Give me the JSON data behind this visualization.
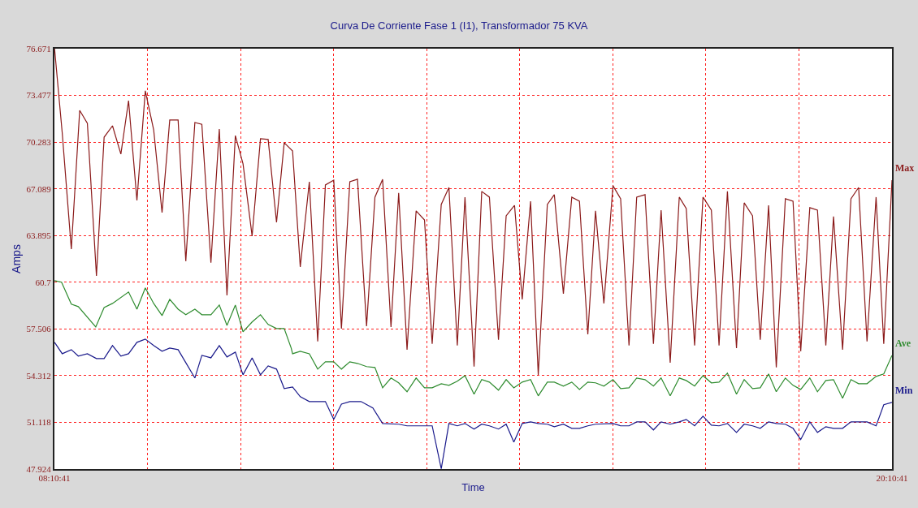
{
  "chart_data": {
    "type": "line",
    "title": "Curva De Corriente Fase 1 (I1), Transformador 75 KVA",
    "xlabel": "Time",
    "ylabel": "Amps",
    "xlim": [
      8.178,
      20.178
    ],
    "ylim": [
      47.924,
      76.671
    ],
    "xticks": [
      {
        "value": 8.178,
        "label": "08:10:41"
      },
      {
        "value": 9.511,
        "label": null
      },
      {
        "value": 10.844,
        "label": null
      },
      {
        "value": 12.178,
        "label": null
      },
      {
        "value": 13.511,
        "label": null
      },
      {
        "value": 14.844,
        "label": null
      },
      {
        "value": 16.178,
        "label": null
      },
      {
        "value": 17.511,
        "label": null
      },
      {
        "value": 18.844,
        "label": null
      },
      {
        "value": 20.178,
        "label": "20:10:41"
      }
    ],
    "yticks": [
      47.924,
      51.118,
      54.312,
      57.506,
      60.7,
      63.895,
      67.089,
      70.283,
      73.477,
      76.671
    ],
    "grid": true,
    "legend": false,
    "marker": "none",
    "line_style": "solid",
    "series": [
      {
        "name": "Max",
        "color": "#8b1a1a",
        "x": [
          8.18,
          8.29,
          8.42,
          8.54,
          8.65,
          8.78,
          8.89,
          9.01,
          9.13,
          9.24,
          9.36,
          9.48,
          9.6,
          9.72,
          9.83,
          9.95,
          10.06,
          10.19,
          10.29,
          10.42,
          10.54,
          10.65,
          10.77,
          10.88,
          11.01,
          11.13,
          11.24,
          11.36,
          11.47,
          11.59,
          11.7,
          11.83,
          11.95,
          12.06,
          12.18,
          12.29,
          12.41,
          12.52,
          12.65,
          12.77,
          12.88,
          13.0,
          13.11,
          13.23,
          13.36,
          13.48,
          13.59,
          13.72,
          13.83,
          13.95,
          14.06,
          14.19,
          14.3,
          14.41,
          14.54,
          14.65,
          14.77,
          14.88,
          15.0,
          15.11,
          15.24,
          15.34,
          15.47,
          15.59,
          15.7,
          15.82,
          15.93,
          16.05,
          16.18,
          16.29,
          16.41,
          16.52,
          16.64,
          16.76,
          16.87,
          17.0,
          17.13,
          17.23,
          17.35,
          17.47,
          17.59,
          17.7,
          17.82,
          17.95,
          18.06,
          18.18,
          18.29,
          18.41,
          18.52,
          18.65,
          18.76,
          18.87,
          19.0,
          19.11,
          19.23,
          19.34,
          19.47,
          19.59,
          19.7,
          19.82,
          19.95,
          20.06,
          20.178
        ],
        "values": [
          76.67,
          70.9,
          62.96,
          72.45,
          71.57,
          61.14,
          70.62,
          71.4,
          69.46,
          73.12,
          66.3,
          73.79,
          71.12,
          65.46,
          71.79,
          71.79,
          62.14,
          71.62,
          71.5,
          62.03,
          71.18,
          59.8,
          70.73,
          68.8,
          63.86,
          70.51,
          70.46,
          64.8,
          70.24,
          69.68,
          61.75,
          67.57,
          56.65,
          67.35,
          67.68,
          57.53,
          67.57,
          67.74,
          57.7,
          66.52,
          67.74,
          57.64,
          66.8,
          56.09,
          65.58,
          64.96,
          56.48,
          66.02,
          67.18,
          56.37,
          66.52,
          54.93,
          66.91,
          66.52,
          56.76,
          65.24,
          65.96,
          59.53,
          66.24,
          54.37,
          66.02,
          66.69,
          59.92,
          66.52,
          66.24,
          57.14,
          65.58,
          59.25,
          67.3,
          66.41,
          56.37,
          66.52,
          66.69,
          56.48,
          65.63,
          55.2,
          66.52,
          65.74,
          56.37,
          66.52,
          65.63,
          56.37,
          66.91,
          56.2,
          66.13,
          65.24,
          56.76,
          65.96,
          54.87,
          66.41,
          66.24,
          55.98,
          65.8,
          65.63,
          56.37,
          65.19,
          56.09,
          66.41,
          67.18,
          56.65,
          66.52,
          56.48,
          67.68
        ]
      },
      {
        "name": "Ave",
        "color": "#2e8b2e",
        "x": [
          8.18,
          8.28,
          8.42,
          8.52,
          8.77,
          8.89,
          9.01,
          9.24,
          9.36,
          9.48,
          9.6,
          9.72,
          9.83,
          9.95,
          10.06,
          10.19,
          10.29,
          10.42,
          10.54,
          10.65,
          10.77,
          10.88,
          11.01,
          11.13,
          11.24,
          11.36,
          11.47,
          11.57,
          11.59,
          11.7,
          11.83,
          11.95,
          12.06,
          12.18,
          12.29,
          12.41,
          12.52,
          12.65,
          12.77,
          12.88,
          13.0,
          13.11,
          13.23,
          13.36,
          13.48,
          13.59,
          13.72,
          13.83,
          13.95,
          14.06,
          14.19,
          14.3,
          14.41,
          14.54,
          14.65,
          14.76,
          14.88,
          15.0,
          15.11,
          15.24,
          15.34,
          15.47,
          15.59,
          15.7,
          15.82,
          15.93,
          16.05,
          16.18,
          16.29,
          16.41,
          16.52,
          16.64,
          16.76,
          16.87,
          17.0,
          17.13,
          17.23,
          17.35,
          17.47,
          17.59,
          17.7,
          17.82,
          17.95,
          18.06,
          18.18,
          18.29,
          18.41,
          18.52,
          18.65,
          18.76,
          18.87,
          19.0,
          19.11,
          19.23,
          19.34,
          19.47,
          19.59,
          19.7,
          19.82,
          19.95,
          20.06,
          20.178
        ],
        "values": [
          60.81,
          60.7,
          59.2,
          59.03,
          57.64,
          58.97,
          59.25,
          60.03,
          58.86,
          60.31,
          59.25,
          58.42,
          59.53,
          58.86,
          58.48,
          58.86,
          58.48,
          58.48,
          59.14,
          57.75,
          59.14,
          57.31,
          57.98,
          58.48,
          57.81,
          57.53,
          57.53,
          56.2,
          55.81,
          55.98,
          55.81,
          54.76,
          55.26,
          55.26,
          54.76,
          55.26,
          55.15,
          54.93,
          54.87,
          53.48,
          54.15,
          53.82,
          53.21,
          54.15,
          53.48,
          53.48,
          53.76,
          53.65,
          53.93,
          54.31,
          53.04,
          54.04,
          53.87,
          53.32,
          54.04,
          53.48,
          53.87,
          54.04,
          52.93,
          53.87,
          53.87,
          53.6,
          53.87,
          53.37,
          53.87,
          53.82,
          53.6,
          54.04,
          53.43,
          53.48,
          54.15,
          54.04,
          53.6,
          54.15,
          52.93,
          54.15,
          53.98,
          53.6,
          54.31,
          53.82,
          53.87,
          54.48,
          53.04,
          54.04,
          53.43,
          53.48,
          54.43,
          53.21,
          54.15,
          53.65,
          53.37,
          54.15,
          53.21,
          53.98,
          54.04,
          52.76,
          54.04,
          53.76,
          53.76,
          54.26,
          54.43,
          55.7
        ]
      },
      {
        "name": "Min",
        "color": "#1a1a8b",
        "x": [
          8.18,
          8.29,
          8.42,
          8.52,
          8.65,
          8.78,
          8.89,
          9.01,
          9.13,
          9.24,
          9.36,
          9.48,
          9.6,
          9.72,
          9.83,
          9.95,
          10.06,
          10.19,
          10.29,
          10.42,
          10.54,
          10.65,
          10.77,
          10.88,
          11.01,
          11.13,
          11.24,
          11.36,
          11.47,
          11.59,
          11.7,
          11.83,
          12.06,
          12.18,
          12.29,
          12.41,
          12.57,
          12.74,
          12.88,
          13.11,
          13.23,
          13.59,
          13.72,
          13.83,
          13.95,
          14.06,
          14.19,
          14.3,
          14.41,
          14.54,
          14.65,
          14.76,
          14.88,
          15.0,
          15.11,
          15.24,
          15.34,
          15.47,
          15.59,
          15.7,
          15.82,
          15.93,
          16.18,
          16.29,
          16.41,
          16.52,
          16.64,
          16.76,
          16.87,
          17.0,
          17.13,
          17.23,
          17.35,
          17.47,
          17.59,
          17.7,
          17.82,
          17.95,
          18.06,
          18.18,
          18.29,
          18.41,
          18.52,
          18.65,
          18.76,
          18.87,
          19.0,
          19.11,
          19.23,
          19.34,
          19.47,
          19.59,
          19.82,
          19.95,
          20.06,
          20.178
        ],
        "values": [
          56.59,
          55.81,
          56.09,
          55.65,
          55.81,
          55.48,
          55.48,
          56.37,
          55.65,
          55.81,
          56.59,
          56.81,
          56.37,
          55.98,
          56.2,
          56.09,
          55.2,
          54.15,
          55.7,
          55.53,
          56.37,
          55.59,
          55.92,
          54.37,
          55.53,
          54.37,
          54.98,
          54.76,
          53.43,
          53.54,
          52.87,
          52.54,
          52.54,
          51.32,
          52.37,
          52.54,
          52.54,
          52.1,
          51.04,
          50.99,
          50.88,
          50.88,
          47.94,
          51.04,
          50.88,
          51.04,
          50.66,
          50.99,
          50.88,
          50.66,
          50.99,
          49.77,
          51.04,
          51.15,
          51.04,
          50.99,
          50.82,
          50.99,
          50.71,
          50.71,
          50.88,
          50.99,
          51.04,
          50.88,
          50.88,
          51.15,
          51.15,
          50.6,
          51.15,
          50.99,
          51.15,
          51.32,
          50.88,
          51.54,
          50.93,
          50.88,
          51.04,
          50.43,
          50.99,
          50.88,
          50.71,
          51.15,
          51.04,
          50.99,
          50.71,
          49.94,
          51.15,
          50.43,
          50.82,
          50.71,
          50.71,
          51.15,
          51.15,
          50.88,
          52.32,
          52.48
        ]
      }
    ]
  }
}
